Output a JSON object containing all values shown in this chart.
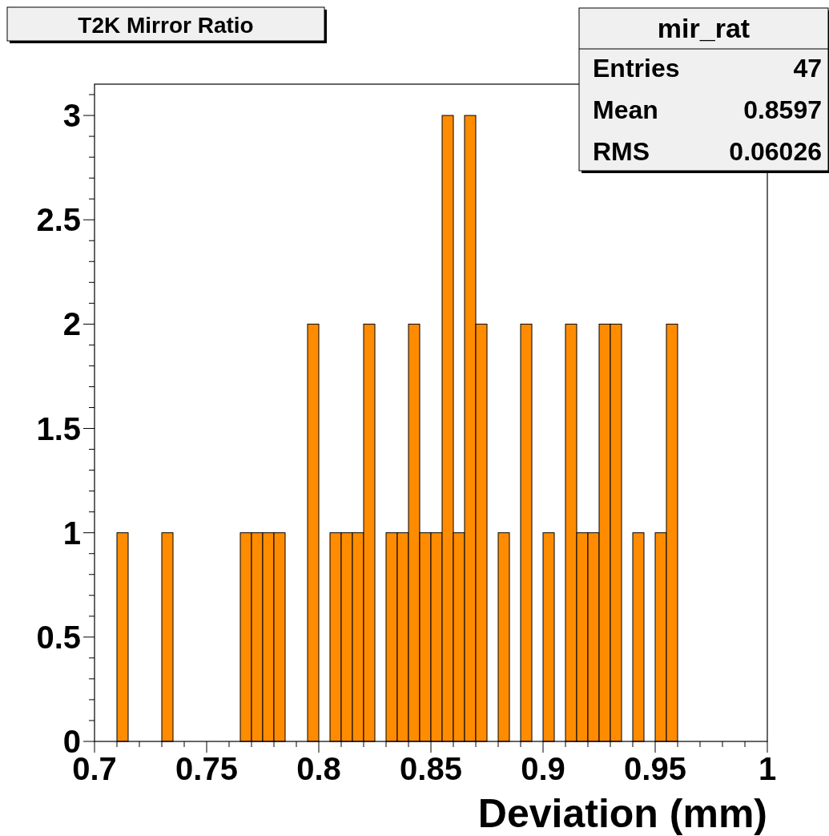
{
  "chart_data": {
    "type": "histogram",
    "title": "T2K Mirror Ratio",
    "xlabel": "Deviation (mm)",
    "bins": [
      0.7,
      0.705,
      0.71,
      0.715,
      0.72,
      0.725,
      0.73,
      0.735,
      0.74,
      0.745,
      0.75,
      0.755,
      0.76,
      0.765,
      0.77,
      0.775,
      0.78,
      0.785,
      0.79,
      0.795,
      0.8,
      0.805,
      0.81,
      0.815,
      0.82,
      0.825,
      0.83,
      0.835,
      0.84,
      0.845,
      0.85,
      0.855,
      0.86,
      0.865,
      0.87,
      0.875,
      0.88,
      0.885,
      0.89,
      0.895,
      0.9,
      0.905,
      0.91,
      0.915,
      0.92,
      0.925,
      0.93,
      0.935,
      0.94,
      0.945,
      0.95,
      0.955,
      0.96,
      0.965,
      0.97,
      0.975,
      0.98,
      0.985,
      0.99,
      0.995,
      1
    ],
    "values": [
      0,
      0,
      1,
      0,
      0,
      0,
      1,
      0,
      0,
      0,
      0,
      0,
      0,
      1,
      1,
      1,
      1,
      0,
      0,
      2,
      0,
      1,
      1,
      1,
      2,
      0,
      1,
      1,
      2,
      1,
      1,
      3,
      1,
      3,
      2,
      0,
      1,
      0,
      2,
      0,
      1,
      0,
      2,
      1,
      1,
      2,
      2,
      0,
      1,
      0,
      1,
      2,
      0,
      0,
      0,
      0,
      0,
      0,
      0,
      0
    ],
    "color": "#ff8c00",
    "xlim": [
      0.7,
      1
    ],
    "xticks": [
      0.7,
      {
        "value": 0.71,
        "label": null
      },
      {
        "value": 0.72,
        "label": null
      },
      {
        "value": 0.73,
        "label": null
      },
      {
        "value": 0.74,
        "label": null
      },
      0.75,
      {
        "value": 0.76,
        "label": null
      },
      {
        "value": 0.77,
        "label": null
      },
      {
        "value": 0.78,
        "label": null
      },
      {
        "value": 0.79,
        "label": null
      },
      0.8,
      {
        "value": 0.81,
        "label": null
      },
      {
        "value": 0.82,
        "label": null
      },
      {
        "value": 0.83,
        "label": null
      },
      {
        "value": 0.84,
        "label": null
      },
      0.85,
      {
        "value": 0.86,
        "label": null
      },
      {
        "value": 0.87,
        "label": null
      },
      {
        "value": 0.88,
        "label": null
      },
      {
        "value": 0.89,
        "label": null
      },
      0.9,
      {
        "value": 0.91,
        "label": null
      },
      {
        "value": 0.92,
        "label": null
      },
      {
        "value": 0.93,
        "label": null
      },
      {
        "value": 0.94,
        "label": null
      },
      0.95,
      {
        "value": 0.96,
        "label": null
      },
      {
        "value": 0.97,
        "label": null
      },
      {
        "value": 0.98,
        "label": null
      },
      {
        "value": 0.99,
        "label": null
      },
      1
    ],
    "ylim": [
      0,
      3.15
    ],
    "yticks": [
      0,
      {
        "value": 0.1,
        "label": null
      },
      {
        "value": 0.2,
        "label": null
      },
      {
        "value": 0.3,
        "label": null
      },
      {
        "value": 0.4,
        "label": null
      },
      0.5,
      {
        "value": 0.6,
        "label": null
      },
      {
        "value": 0.7,
        "label": null
      },
      {
        "value": 0.8,
        "label": null
      },
      {
        "value": 0.9,
        "label": null
      },
      1,
      {
        "value": 1.1,
        "label": null
      },
      {
        "value": 1.2,
        "label": null
      },
      {
        "value": 1.3,
        "label": null
      },
      {
        "value": 1.4,
        "label": null
      },
      1.5,
      {
        "value": 1.6,
        "label": null
      },
      {
        "value": 1.7,
        "label": null
      },
      {
        "value": 1.8,
        "label": null
      },
      {
        "value": 1.9,
        "label": null
      },
      2,
      {
        "value": 2.1,
        "label": null
      },
      {
        "value": 2.2,
        "label": null
      },
      {
        "value": 2.3,
        "label": null
      },
      {
        "value": 2.4,
        "label": null
      },
      2.5,
      {
        "value": 2.6,
        "label": null
      },
      {
        "value": 2.7,
        "label": null
      },
      {
        "value": 2.8,
        "label": null
      },
      {
        "value": 2.9,
        "label": null
      },
      3,
      {
        "value": 3.1,
        "label": null
      }
    ],
    "annotations": [
      "mir_rat",
      "Entries",
      "47",
      "Mean",
      "0.8597",
      "RMS",
      "0.06026"
    ]
  }
}
